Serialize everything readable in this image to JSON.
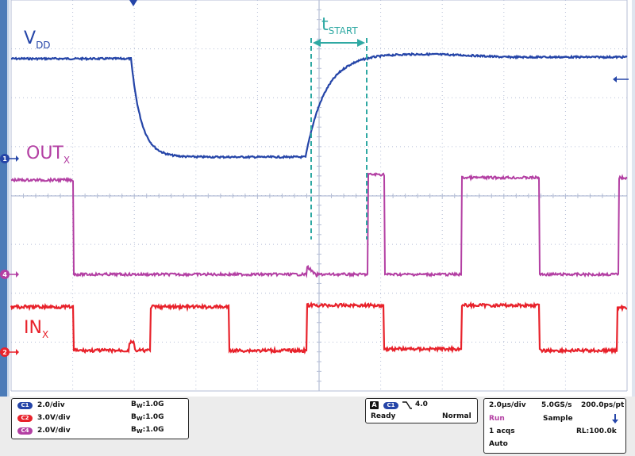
{
  "colors": {
    "ch1": "#2545a8",
    "ch2": "#e8222b",
    "ch4": "#b33fa3",
    "annotation": "#2fa9a3",
    "grid": "#b5bed6",
    "frame": "#4a7bb8"
  },
  "scope": {
    "labels": {
      "vdd_main": "V",
      "vdd_sub": "DD",
      "out_main": "OUT",
      "out_sub": "X",
      "in_main": "IN",
      "in_sub": "X",
      "tstart_main": "t",
      "tstart_sub": "START"
    },
    "markers": {
      "ch1": "1",
      "ch4": "4",
      "ch2": "2"
    }
  },
  "channels": [
    {
      "pill": "C1",
      "scale": "2.0/div",
      "bw_b": "B",
      "bw_w": "W",
      "bw_val": ":1.0G",
      "color": "#2545a8"
    },
    {
      "pill": "C2",
      "scale": "3.0V/div",
      "bw_b": "B",
      "bw_w": "W",
      "bw_val": ":1.0G",
      "color": "#e8222b"
    },
    {
      "pill": "C4",
      "scale": "2.0V/div",
      "bw_b": "B",
      "bw_w": "W",
      "bw_val": ":1.0G",
      "color": "#b33fa3"
    }
  ],
  "trigger": {
    "mode_badge": "A",
    "source": "C1",
    "level": "4.0",
    "state": "Ready",
    "type": "Normal"
  },
  "acquisition": {
    "timebase": "2.0µs/div",
    "sample_rate": "5.0GS/s",
    "resolution": "200.0ps/pt",
    "run_state": "Run",
    "mode": "Sample",
    "acqs": "1 acqs",
    "record_length": "RL:100.0k",
    "trigger_mode": "Auto"
  }
}
